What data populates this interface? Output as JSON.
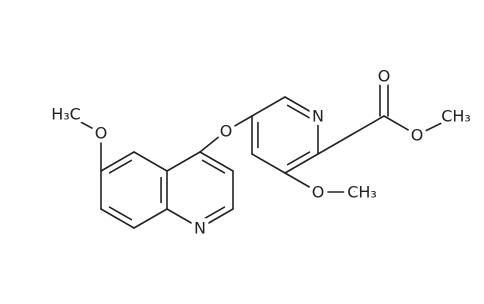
{
  "molecule": {
    "atom_labels": [
      "H₃C",
      "O",
      "N",
      "O",
      "N",
      "O",
      "CH₃",
      "O",
      "O",
      "CH₃"
    ]
  }
}
